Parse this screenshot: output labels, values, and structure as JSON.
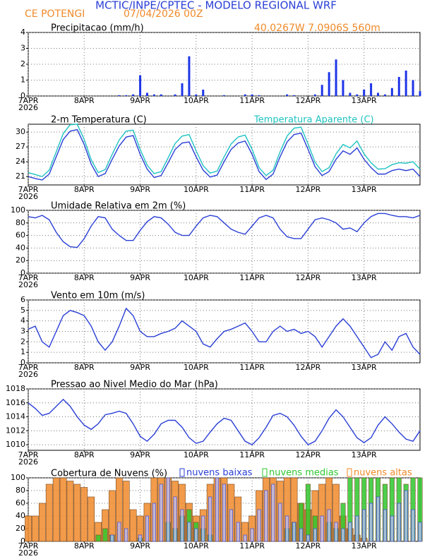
{
  "header": {
    "title": "MCTIC/INPE/CPTEC - MODELO REGIONAL WRF",
    "location": "CE POTENGI",
    "date": "07/04/2026 00Z",
    "coords": "40.0267W 7.0906S 560m"
  },
  "chart_data": [
    {
      "type": "bar",
      "title": "Precipitacao (mm/h)",
      "color": "#1f35e8",
      "year": "2026",
      "x": [
        0,
        3,
        6,
        9,
        12,
        15,
        18,
        21,
        24,
        27,
        30,
        33,
        36,
        39,
        42,
        45,
        48,
        51,
        54,
        57,
        60,
        63,
        66,
        69,
        72,
        75,
        78,
        81,
        84,
        87,
        90,
        93,
        96,
        99,
        102,
        105,
        108,
        111,
        114,
        117,
        120,
        123,
        126,
        129,
        132,
        135,
        138,
        141,
        144,
        147,
        150,
        153,
        156,
        159,
        162,
        165,
        168
      ],
      "values": [
        0,
        0,
        0,
        0,
        0,
        0,
        0,
        0,
        0,
        0,
        0,
        0,
        0,
        0.05,
        0.05,
        0.1,
        1.3,
        0.2,
        0.1,
        0.1,
        0,
        0.1,
        0.8,
        2.5,
        0.1,
        0.4,
        0,
        0,
        0.05,
        0,
        0,
        0.1,
        0.1,
        0.05,
        0,
        0,
        0,
        0.1,
        0.05,
        0,
        0,
        0.1,
        0.7,
        1.5,
        2.3,
        1.0,
        0.2,
        0.1,
        0.4,
        0.8,
        0.2,
        0.1,
        0.5,
        1.2,
        1.6,
        1.0,
        0.3
      ],
      "xlim": [
        0,
        168
      ],
      "xticks": [
        {
          "value": 0,
          "label": "7APR"
        },
        {
          "value": 24,
          "label": "8APR"
        },
        {
          "value": 48,
          "label": "9APR"
        },
        {
          "value": 72,
          "label": "10APR"
        },
        {
          "value": 96,
          "label": "11APR"
        },
        {
          "value": 120,
          "label": "12APR"
        },
        {
          "value": 144,
          "label": "13APR"
        }
      ],
      "ylim": [
        0,
        4
      ],
      "yticks": [
        0,
        1,
        2,
        3,
        4
      ],
      "grid": true
    },
    {
      "type": "line",
      "year": "2026",
      "x": [
        0,
        3,
        6,
        9,
        12,
        15,
        18,
        21,
        24,
        27,
        30,
        33,
        36,
        39,
        42,
        45,
        48,
        51,
        54,
        57,
        60,
        63,
        66,
        69,
        72,
        75,
        78,
        81,
        84,
        87,
        90,
        93,
        96,
        99,
        102,
        105,
        108,
        111,
        114,
        117,
        120,
        123,
        126,
        129,
        132,
        135,
        138,
        141,
        144,
        147,
        150,
        153,
        156,
        159,
        162,
        165,
        168
      ],
      "series": [
        {
          "name": "2-m Temperatura (C)",
          "color": "#2a3fd6",
          "values": [
            21.0,
            20.6,
            20.3,
            21.5,
            25,
            28.5,
            30.2,
            30.5,
            27.5,
            23.5,
            21.0,
            21.6,
            24.5,
            27.2,
            29.0,
            29.3,
            25.5,
            22.5,
            20.8,
            21.2,
            23.8,
            26.5,
            27.8,
            28.0,
            25.0,
            22.3,
            20.9,
            21.3,
            24.0,
            26.5,
            27.8,
            28.2,
            25.5,
            22.0,
            20.4,
            21.5,
            25.0,
            28.0,
            29.5,
            29.8,
            26.5,
            23.0,
            21.2,
            22.0,
            24.5,
            26.2,
            25.5,
            26.8,
            24.5,
            22.8,
            21.5,
            21.5,
            22.2,
            22.5,
            22.2,
            22.5,
            21.0
          ]
        },
        {
          "name": "Temperatura Aparente (C)",
          "color": "#1fc3c3",
          "values": [
            21.8,
            21.4,
            21.0,
            22.3,
            26.0,
            29.7,
            31.5,
            31.6,
            28.5,
            24.4,
            21.8,
            22.4,
            25.5,
            28.4,
            30.2,
            30.4,
            26.5,
            23.3,
            21.6,
            22.0,
            24.8,
            27.7,
            29.2,
            29.5,
            26.2,
            23.2,
            21.7,
            22.1,
            25.0,
            27.6,
            29.0,
            29.4,
            26.5,
            22.8,
            21.2,
            22.3,
            26.0,
            29.2,
            30.8,
            31.0,
            27.6,
            23.9,
            22.0,
            22.8,
            25.6,
            27.5,
            26.8,
            28.2,
            25.6,
            23.8,
            22.5,
            22.6,
            23.4,
            23.8,
            23.7,
            24.0,
            22.5
          ]
        }
      ],
      "xlim": [
        0,
        168
      ],
      "xticks": [
        {
          "value": 0,
          "label": "7APR"
        },
        {
          "value": 24,
          "label": "8APR"
        },
        {
          "value": 48,
          "label": "9APR"
        },
        {
          "value": 72,
          "label": "10APR"
        },
        {
          "value": 96,
          "label": "11APR"
        },
        {
          "value": 120,
          "label": "12APR"
        },
        {
          "value": 144,
          "label": "13APR"
        }
      ],
      "ylim": [
        19.3,
        31.6
      ],
      "yticks": [
        21,
        24,
        27,
        30
      ],
      "grid": true
    },
    {
      "type": "line",
      "title": "Umidade Relativa em 2m (%)",
      "color": "#2a3fd6",
      "year": "2026",
      "x": [
        0,
        3,
        6,
        9,
        12,
        15,
        18,
        21,
        24,
        27,
        30,
        33,
        36,
        39,
        42,
        45,
        48,
        51,
        54,
        57,
        60,
        63,
        66,
        69,
        72,
        75,
        78,
        81,
        84,
        87,
        90,
        93,
        96,
        99,
        102,
        105,
        108,
        111,
        114,
        117,
        120,
        123,
        126,
        129,
        132,
        135,
        138,
        141,
        144,
        147,
        150,
        153,
        156,
        159,
        162,
        165,
        168
      ],
      "values": [
        90,
        88,
        92,
        85,
        65,
        50,
        42,
        41,
        55,
        75,
        90,
        88,
        70,
        60,
        52,
        52,
        68,
        82,
        90,
        88,
        78,
        65,
        60,
        60,
        75,
        88,
        92,
        90,
        80,
        70,
        65,
        62,
        75,
        88,
        92,
        88,
        70,
        58,
        55,
        55,
        70,
        85,
        88,
        85,
        80,
        70,
        72,
        66,
        80,
        90,
        95,
        95,
        92,
        90,
        90,
        88,
        92
      ],
      "xlim": [
        0,
        168
      ],
      "xticks": [
        {
          "value": 0,
          "label": "7APR"
        },
        {
          "value": 24,
          "label": "8APR"
        },
        {
          "value": 48,
          "label": "9APR"
        },
        {
          "value": 72,
          "label": "10APR"
        },
        {
          "value": 96,
          "label": "11APR"
        },
        {
          "value": 120,
          "label": "12APR"
        },
        {
          "value": 144,
          "label": "13APR"
        }
      ],
      "ylim": [
        0,
        100
      ],
      "yticks": [
        0,
        20,
        40,
        60,
        80,
        100
      ],
      "grid": true
    },
    {
      "type": "line",
      "title": "Vento em 10m (m/s)",
      "color": "#2a3fd6",
      "year": "2026",
      "x": [
        0,
        3,
        6,
        9,
        12,
        15,
        18,
        21,
        24,
        27,
        30,
        33,
        36,
        39,
        42,
        45,
        48,
        51,
        54,
        57,
        60,
        63,
        66,
        69,
        72,
        75,
        78,
        81,
        84,
        87,
        90,
        93,
        96,
        99,
        102,
        105,
        108,
        111,
        114,
        117,
        120,
        123,
        126,
        129,
        132,
        135,
        138,
        141,
        144,
        147,
        150,
        153,
        156,
        159,
        162,
        165,
        168
      ],
      "values": [
        3.2,
        3.5,
        2.0,
        1.5,
        3,
        4.5,
        5.0,
        4.8,
        4.5,
        3.5,
        2.0,
        1.2,
        2.0,
        3.5,
        5.2,
        4.5,
        3.0,
        2.5,
        2.5,
        2.8,
        3.0,
        3.3,
        4.0,
        3.5,
        3.0,
        1.8,
        1.5,
        2.3,
        3.0,
        3.2,
        3.5,
        3.8,
        3.0,
        2.0,
        2.0,
        3.0,
        3.5,
        3.0,
        3.2,
        2.8,
        3.0,
        2.5,
        1.5,
        2.5,
        3.5,
        4.2,
        3.5,
        2.5,
        1.5,
        0.5,
        0.8,
        2.0,
        1.2,
        2.5,
        2.8,
        1.5,
        0.8
      ],
      "xlim": [
        0,
        168
      ],
      "xticks": [
        {
          "value": 0,
          "label": "7APR"
        },
        {
          "value": 24,
          "label": "8APR"
        },
        {
          "value": 48,
          "label": "9APR"
        },
        {
          "value": 72,
          "label": "10APR"
        },
        {
          "value": 96,
          "label": "11APR"
        },
        {
          "value": 120,
          "label": "12APR"
        },
        {
          "value": 144,
          "label": "13APR"
        }
      ],
      "ylim": [
        0,
        6
      ],
      "yticks": [
        0,
        1,
        2,
        3,
        4,
        5,
        6
      ],
      "grid": true
    },
    {
      "type": "line",
      "title": "Pressao ao Nivel Medio do Mar (hPa)",
      "color": "#2a3fd6",
      "year": "2026",
      "x": [
        0,
        3,
        6,
        9,
        12,
        15,
        18,
        21,
        24,
        27,
        30,
        33,
        36,
        39,
        42,
        45,
        48,
        51,
        54,
        57,
        60,
        63,
        66,
        69,
        72,
        75,
        78,
        81,
        84,
        87,
        90,
        93,
        96,
        99,
        102,
        105,
        108,
        111,
        114,
        117,
        120,
        123,
        126,
        129,
        132,
        135,
        138,
        141,
        144,
        147,
        150,
        153,
        156,
        159,
        162,
        165,
        168
      ],
      "values": [
        1016,
        1015.2,
        1014.2,
        1014.5,
        1015.5,
        1016.5,
        1015.5,
        1014,
        1012.8,
        1012.2,
        1013,
        1014.3,
        1014.5,
        1014.8,
        1014.5,
        1013,
        1011.2,
        1010.5,
        1011.5,
        1013,
        1013.5,
        1013.5,
        1012.5,
        1011,
        1010.2,
        1010.5,
        1011.8,
        1013,
        1013.8,
        1013.5,
        1012,
        1010.5,
        1010,
        1011,
        1012.5,
        1014.2,
        1014.5,
        1014,
        1012.8,
        1011.2,
        1010,
        1010.5,
        1012,
        1013.8,
        1015,
        1014,
        1012.5,
        1011,
        1010.3,
        1011,
        1012.8,
        1014,
        1013,
        1011.8,
        1010.8,
        1010.5,
        1012
      ],
      "xlim": [
        0,
        168
      ],
      "xticks": [
        {
          "value": 0,
          "label": "7APR"
        },
        {
          "value": 24,
          "label": "8APR"
        },
        {
          "value": 48,
          "label": "9APR"
        },
        {
          "value": 72,
          "label": "10APR"
        },
        {
          "value": 96,
          "label": "11APR"
        },
        {
          "value": 120,
          "label": "12APR"
        },
        {
          "value": 144,
          "label": "13APR"
        }
      ],
      "ylim": [
        1009.2,
        1018
      ],
      "yticks": [
        1010,
        1012,
        1014,
        1016,
        1018
      ],
      "grid": true
    },
    {
      "type": "bar",
      "title": "Cobertura de Nuvens (%)",
      "year": "2026",
      "x": [
        0,
        3,
        6,
        9,
        12,
        15,
        18,
        21,
        24,
        27,
        30,
        33,
        36,
        39,
        42,
        45,
        48,
        51,
        54,
        57,
        60,
        63,
        66,
        69,
        72,
        75,
        78,
        81,
        84,
        87,
        90,
        93,
        96,
        99,
        102,
        105,
        108,
        111,
        114,
        117,
        120,
        123,
        126,
        129,
        132,
        135,
        138,
        141,
        144,
        147,
        150,
        153,
        156,
        159,
        162,
        165,
        168
      ],
      "series": [
        {
          "name": "nuvens baixas",
          "color": "#2a3fd6",
          "values": [
            0,
            0,
            0,
            0,
            0,
            0,
            0,
            0,
            0,
            0,
            0,
            0,
            10,
            30,
            20,
            0,
            10,
            40,
            60,
            90,
            100,
            70,
            50,
            30,
            20,
            40,
            70,
            100,
            90,
            50,
            30,
            10,
            20,
            50,
            80,
            90,
            60,
            40,
            30,
            20,
            10,
            20,
            40,
            50,
            30,
            20,
            30,
            40,
            50,
            60,
            70,
            50,
            40,
            60,
            80,
            50,
            30
          ]
        },
        {
          "name": "nuvens medias",
          "color": "#2ec82e",
          "values": [
            0,
            0,
            0,
            0,
            0,
            0,
            0,
            0,
            0,
            0,
            10,
            20,
            10,
            0,
            0,
            0,
            5,
            0,
            0,
            0,
            30,
            20,
            40,
            50,
            30,
            20,
            10,
            0,
            0,
            0,
            0,
            0,
            0,
            0,
            0,
            0,
            0,
            20,
            30,
            60,
            90,
            40,
            0,
            30,
            20,
            60,
            100,
            100,
            100,
            100,
            100,
            90,
            100,
            100,
            90,
            100,
            100
          ]
        },
        {
          "name": "nuvens altas",
          "color": "#f08a2a",
          "values": [
            40,
            40,
            60,
            90,
            100,
            100,
            95,
            90,
            85,
            70,
            30,
            50,
            80,
            100,
            95,
            50,
            40,
            60,
            100,
            100,
            100,
            95,
            90,
            60,
            40,
            50,
            90,
            100,
            100,
            90,
            70,
            30,
            40,
            80,
            100,
            100,
            95,
            100,
            100,
            60,
            50,
            80,
            90,
            100,
            90,
            40,
            20,
            10,
            5,
            0,
            0,
            0,
            0,
            0,
            0,
            0,
            0
          ]
        }
      ],
      "xlim": [
        0,
        168
      ],
      "xticks": [
        {
          "value": 0,
          "label": "7APR"
        },
        {
          "value": 24,
          "label": "8APR"
        },
        {
          "value": 48,
          "label": "9APR"
        },
        {
          "value": 72,
          "label": "10APR"
        },
        {
          "value": 96,
          "label": "11APR"
        },
        {
          "value": 120,
          "label": "12APR"
        },
        {
          "value": 144,
          "label": "13APR"
        }
      ],
      "ylim": [
        0,
        100
      ],
      "yticks": [
        0,
        20,
        40,
        60,
        80,
        100
      ],
      "grid": true
    }
  ]
}
